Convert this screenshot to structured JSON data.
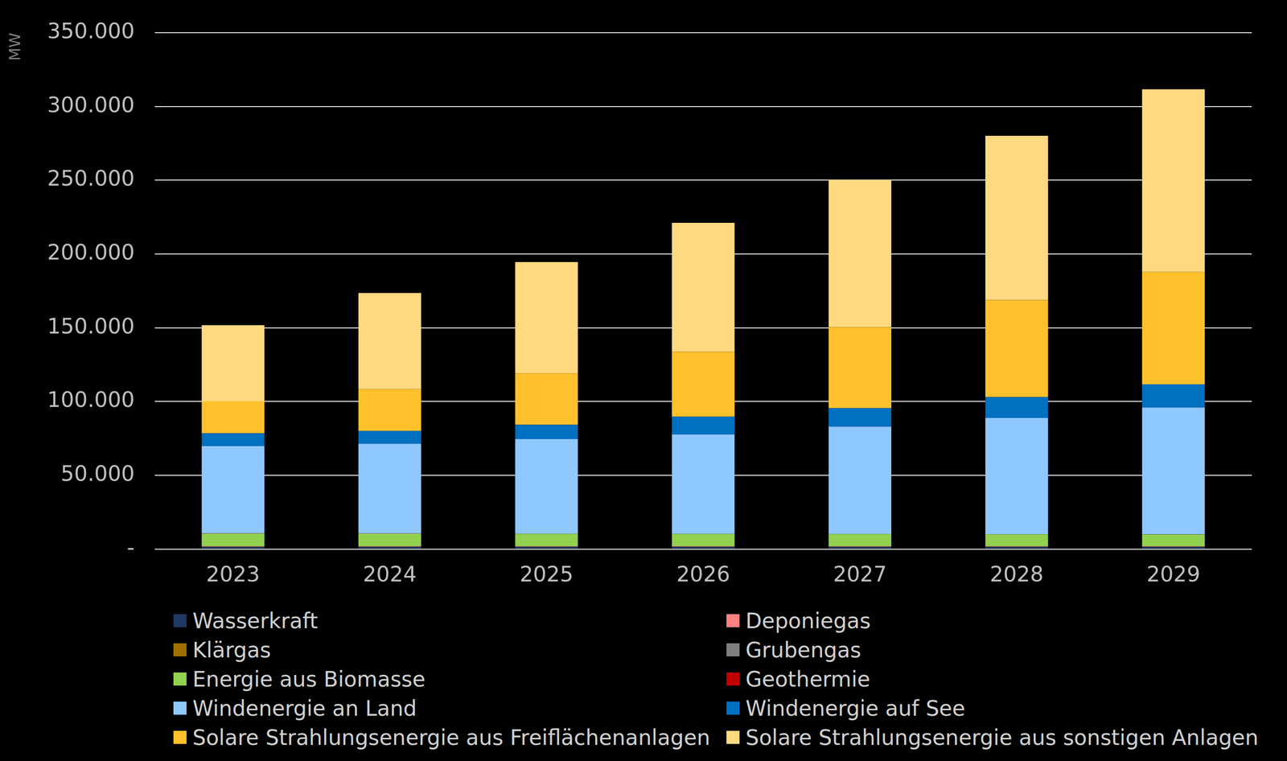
{
  "chart_data": {
    "type": "bar",
    "stacked": true,
    "grid": true,
    "legend": "bottom",
    "y_label": "MW",
    "categories": [
      "2023",
      "2024",
      "2025",
      "2026",
      "2027",
      "2028",
      "2029"
    ],
    "ylim": [
      0,
      350000
    ],
    "yticks": [
      {
        "value": 0,
        "label": "-"
      },
      {
        "value": 50000,
        "label": "50.000"
      },
      {
        "value": 100000,
        "label": "100.000"
      },
      {
        "value": 150000,
        "label": "150.000"
      },
      {
        "value": 200000,
        "label": "200.000"
      },
      {
        "value": 250000,
        "label": "250.000"
      },
      {
        "value": 300000,
        "label": "300.000"
      },
      {
        "value": 350000,
        "label": "350.000"
      }
    ],
    "series": [
      {
        "name": "Wasserkraft",
        "color": "#1f3864",
        "values": [
          1500,
          1500,
          1500,
          1500,
          1500,
          1500,
          1500
        ]
      },
      {
        "name": "Deponiegas",
        "color": "#ff8080",
        "values": [
          200,
          200,
          200,
          200,
          200,
          200,
          200
        ]
      },
      {
        "name": "Klärgas",
        "color": "#a07000",
        "values": [
          100,
          100,
          100,
          100,
          100,
          100,
          100
        ]
      },
      {
        "name": "Grubengas",
        "color": "#7f7f7f",
        "values": [
          150,
          150,
          150,
          150,
          150,
          150,
          150
        ]
      },
      {
        "name": "Energie aus Biomasse",
        "color": "#92d050",
        "values": [
          8600,
          8500,
          8400,
          8300,
          8200,
          8100,
          8000
        ]
      },
      {
        "name": "Geothermie",
        "color": "#c00000",
        "values": [
          50,
          50,
          50,
          50,
          50,
          50,
          50
        ]
      },
      {
        "name": "Windenergie an Land",
        "color": "#8fc8ff",
        "values": [
          59200,
          60900,
          64100,
          67400,
          72800,
          78800,
          85900
        ]
      },
      {
        "name": "Windenergie auf See",
        "color": "#0070c0",
        "values": [
          8700,
          8700,
          9800,
          12000,
          12500,
          14100,
          15800
        ]
      },
      {
        "name": "Solare Strahlungsenergie aus Freiflächenanlagen",
        "color": "#ffc12b",
        "values": [
          21700,
          28300,
          34800,
          44000,
          54900,
          65800,
          76100
        ]
      },
      {
        "name": "Solare Strahlungsenergie aus sonstigen Anlagen",
        "color": "#ffd980",
        "values": [
          51600,
          65200,
          75500,
          87500,
          100000,
          111400,
          123900
        ]
      }
    ]
  }
}
